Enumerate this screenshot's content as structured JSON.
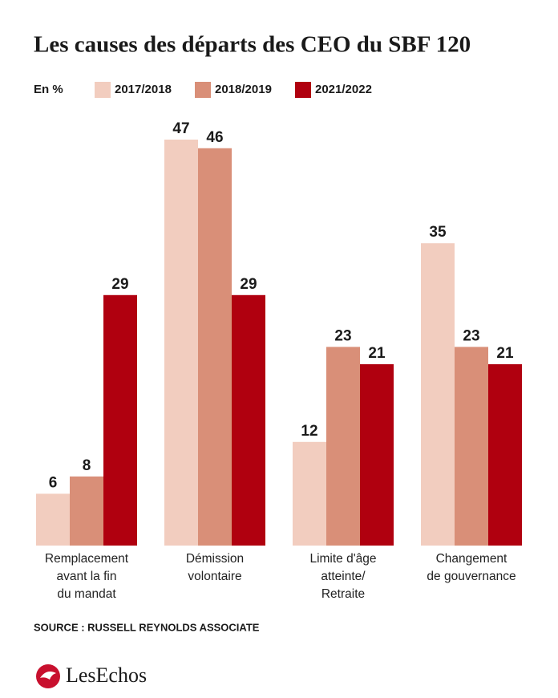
{
  "chart_data": {
    "type": "bar",
    "title": "Les causes des départs des CEO du SBF 120",
    "unit_label": "En %",
    "categories": [
      [
        "Remplacement",
        "avant la fin",
        "du mandat"
      ],
      [
        "Démission",
        "volontaire"
      ],
      [
        "Limite d'âge",
        "atteinte/",
        "Retraite"
      ],
      [
        "Changement",
        "de gouvernance"
      ]
    ],
    "series": [
      {
        "name": "2017/2018",
        "color": "#f2cdbf",
        "values": [
          6,
          47,
          12,
          35
        ]
      },
      {
        "name": "2018/2019",
        "color": "#d98f78",
        "values": [
          8,
          46,
          23,
          23
        ]
      },
      {
        "name": "2021/2022",
        "color": "#b0000f",
        "values": [
          29,
          29,
          21,
          21
        ]
      }
    ],
    "source": "SOURCE : RUSSELL REYNOLDS ASSOCIATE",
    "brand": "LesEchos"
  }
}
